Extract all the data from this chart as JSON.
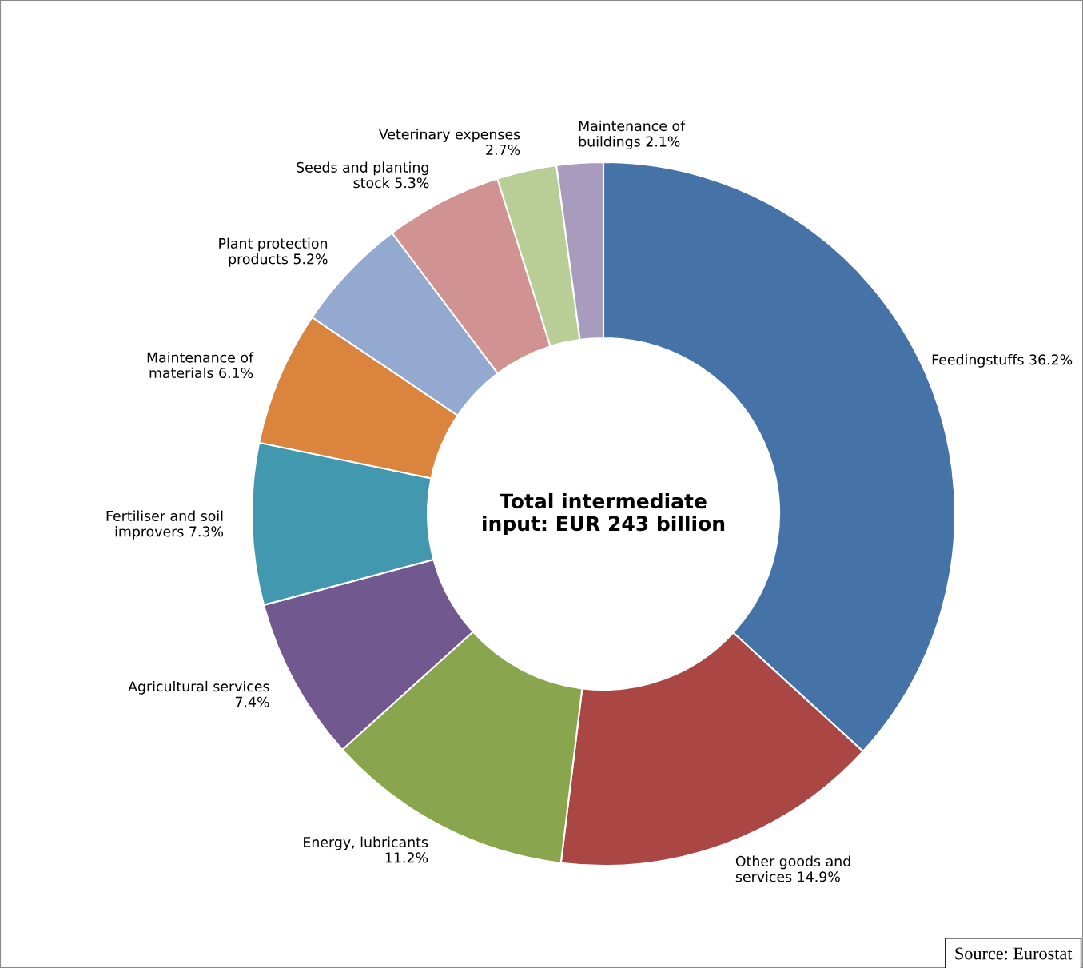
{
  "chart_data": {
    "type": "donut",
    "title": "Total intermediate\ninput: EUR 243 billion",
    "categories": [
      "Feedingstuffs",
      "Other goods and\nservices",
      "Energy, lubricants",
      "Agricultural services",
      "Fertiliser and soil\nimprovers",
      "Maintenance of\nmaterials",
      "Plant protection\nproducts",
      "Seeds and planting\nstock",
      "Veterinary expenses",
      "Maintenance of\nbuildings"
    ],
    "values": [
      36.2,
      14.9,
      11.2,
      7.4,
      7.3,
      6.1,
      5.2,
      5.3,
      2.7,
      2.1
    ],
    "value_labels": [
      "36.2%",
      "14.9%",
      "11.2%",
      "7.4%",
      "7.3%",
      "6.1%",
      "5.2%",
      "5.3%",
      "2.7%",
      "2.1%"
    ],
    "colors": [
      "#4572a7",
      "#aa4643",
      "#89a54e",
      "#71588f",
      "#4198af",
      "#db843d",
      "#93a9cf",
      "#d19392",
      "#b9cd96",
      "#a99bbd"
    ],
    "annotations": [
      "Source: Eurostat"
    ]
  }
}
